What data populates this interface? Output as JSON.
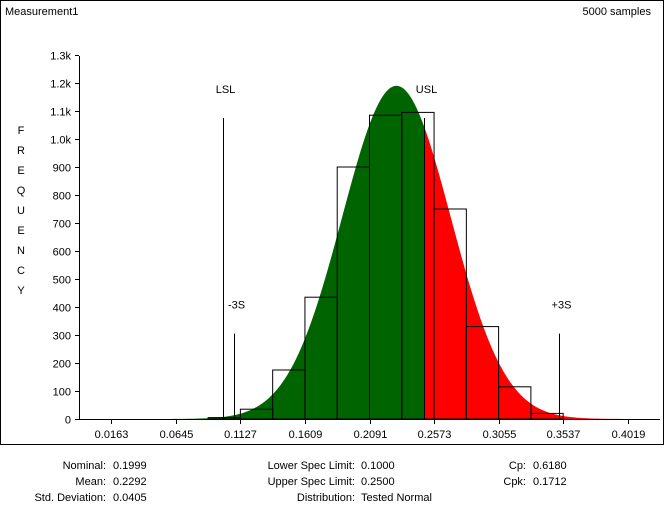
{
  "header": {
    "title": "Measurement1",
    "samples": "5000 samples"
  },
  "colors": {
    "in_spec": "#006400",
    "out_of_spec": "#ff0000",
    "bars": "#000000"
  },
  "chart_data": {
    "type": "bar",
    "title": "Measurement1",
    "ylabel": "FREQUENCY",
    "ylabel_letters": [
      "F",
      "R",
      "E",
      "Q",
      "U",
      "E",
      "N",
      "C",
      "Y"
    ],
    "ylim": [
      0,
      1350
    ],
    "yticks": [
      0,
      100,
      200,
      300,
      400,
      500,
      600,
      700,
      800,
      900,
      1000,
      1100,
      1200,
      1300
    ],
    "ytick_labels": [
      "0",
      "100",
      "200",
      "300",
      "400",
      "500",
      "600",
      "700",
      "800",
      "900",
      "1.0k",
      "1.1k",
      "1.2k",
      "1.3k"
    ],
    "xlim": [
      -0.0078,
      0.426
    ],
    "xtick_labels": [
      "0.0163",
      "0.0645",
      "0.1127",
      "0.1609",
      "0.2091",
      "0.2573",
      "0.3055",
      "0.3537",
      "0.4019"
    ],
    "xticks": [
      0.0163,
      0.0645,
      0.1127,
      0.1609,
      0.2091,
      0.2573,
      0.3055,
      0.3537,
      0.4019
    ],
    "bin_width": 0.0241,
    "histogram": {
      "bin_left": [
        0.0886,
        0.1127,
        0.1368,
        0.1609,
        0.185,
        0.2091,
        0.2332,
        0.2573,
        0.2814,
        0.3055,
        0.3296
      ],
      "counts": [
        5,
        35,
        175,
        435,
        900,
        1085,
        1095,
        750,
        330,
        115,
        20
      ]
    },
    "normal_curve": {
      "mean": 0.2292,
      "std": 0.0405,
      "peak": 1190,
      "color_split_at": 0.25
    },
    "reference_lines": [
      {
        "label": "LSL",
        "x": 0.1,
        "height": 1075
      },
      {
        "label": "USL",
        "x": 0.25,
        "height": 1075
      },
      {
        "label": "-3S",
        "x": 0.1077,
        "height": 305
      },
      {
        "label": "+3S",
        "x": 0.3507,
        "height": 305
      }
    ]
  },
  "stats": {
    "nominal_label": "Nominal:",
    "nominal": "0.1999",
    "mean_label": "Mean:",
    "mean": "0.2292",
    "std_label": "Std. Deviation:",
    "std": "0.0405",
    "lsl_label": "Lower Spec Limit:",
    "lsl": "0.1000",
    "usl_label": "Upper Spec Limit:",
    "usl": "0.2500",
    "dist_label": "Distribution:",
    "dist": "Tested Normal",
    "cp_label": "Cp:",
    "cp": "0.6180",
    "cpk_label": "Cpk:",
    "cpk": "0.1712"
  }
}
